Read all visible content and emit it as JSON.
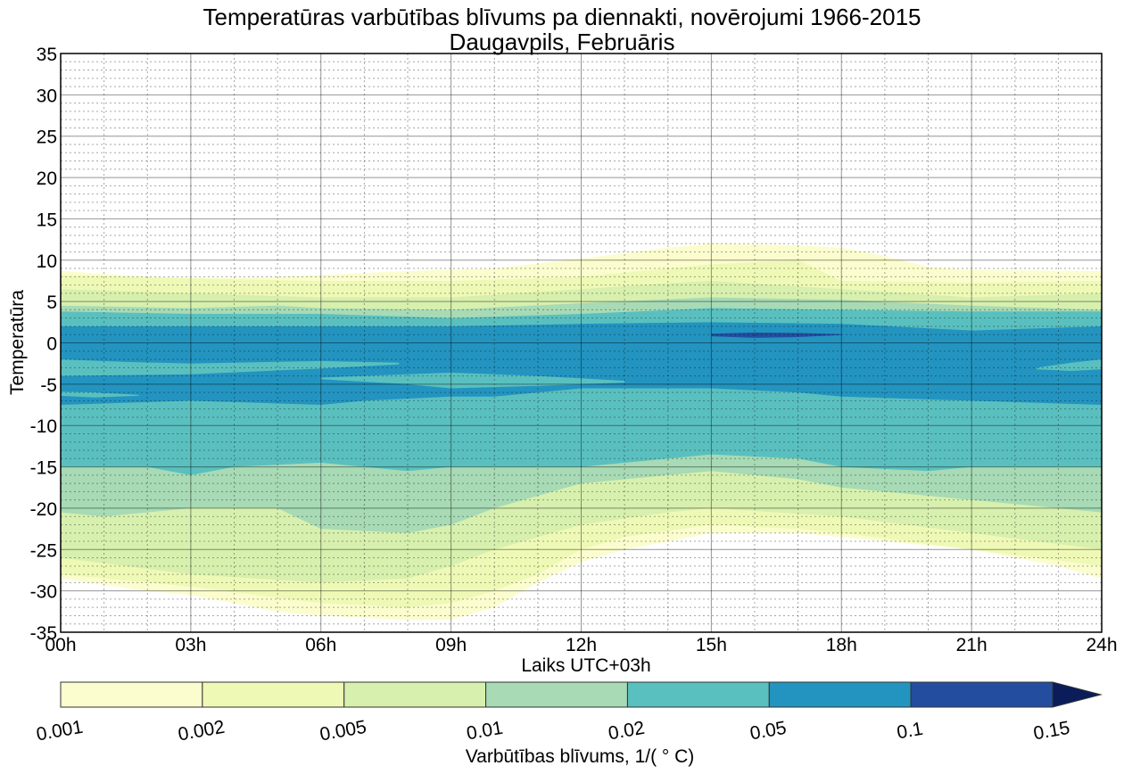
{
  "chart_data": {
    "type": "contourf",
    "title": "Temperatūras varbūtības blīvums pa diennakti, novērojumi 1966-2015",
    "subtitle": "Daugavpils, Februāris",
    "xlabel": "Laiks UTC+03h",
    "ylabel": "Temperatūra",
    "xlim": [
      0,
      24
    ],
    "ylim": [
      -35,
      35
    ],
    "x_ticks": [
      {
        "value": 0,
        "label": "00h"
      },
      {
        "value": 3,
        "label": "03h"
      },
      {
        "value": 6,
        "label": "06h"
      },
      {
        "value": 9,
        "label": "09h"
      },
      {
        "value": 12,
        "label": "12h"
      },
      {
        "value": 15,
        "label": "15h"
      },
      {
        "value": 18,
        "label": "18h"
      },
      {
        "value": 21,
        "label": "21h"
      },
      {
        "value": 24,
        "label": "24h"
      }
    ],
    "y_ticks": [
      {
        "value": 35,
        "label": "35"
      },
      {
        "value": 30,
        "label": "30"
      },
      {
        "value": 25,
        "label": "25"
      },
      {
        "value": 20,
        "label": "20"
      },
      {
        "value": 15,
        "label": "15"
      },
      {
        "value": 10,
        "label": "10"
      },
      {
        "value": 5,
        "label": "5"
      },
      {
        "value": 0,
        "label": "0"
      },
      {
        "value": -5,
        "label": "-5"
      },
      {
        "value": -10,
        "label": "-10"
      },
      {
        "value": -15,
        "label": "-15"
      },
      {
        "value": -20,
        "label": "-20"
      },
      {
        "value": -25,
        "label": "-25"
      },
      {
        "value": -30,
        "label": "-30"
      },
      {
        "value": -35,
        "label": "-35"
      }
    ],
    "grid": {
      "major": true,
      "minor": true,
      "x_minor_step": 1,
      "y_minor_step": 1
    },
    "colorbar": {
      "label": "Varbūtības blīvums, 1/( ° C)",
      "placement": "bottom",
      "extend": "max",
      "levels": [
        "0.001",
        "0.002",
        "0.005",
        "0.01",
        "0.02",
        "0.05",
        "0.1",
        "0.15"
      ],
      "colors": [
        "#fbfdce",
        "#eff9b6",
        "#d7f0ae",
        "#a7dab5",
        "#5ac0bf",
        "#2394c0",
        "#234ea0",
        "#0a1d5a"
      ]
    },
    "bands": [
      {
        "level": "0.001",
        "color_index": 0,
        "upper": [
          [
            0,
            8.7
          ],
          [
            2,
            8
          ],
          [
            4,
            7.8
          ],
          [
            6,
            8.2
          ],
          [
            8,
            8.7
          ],
          [
            10,
            9
          ],
          [
            12,
            10.2
          ],
          [
            14,
            11.5
          ],
          [
            15,
            12
          ],
          [
            17,
            11.8
          ],
          [
            18,
            11.5
          ],
          [
            19,
            10.5
          ],
          [
            20,
            9.2
          ],
          [
            21,
            8.8
          ],
          [
            24,
            8.7
          ]
        ],
        "lower": [
          [
            0,
            -28.5
          ],
          [
            2,
            -30
          ],
          [
            3,
            -30.5
          ],
          [
            5,
            -32.5
          ],
          [
            6,
            -33
          ],
          [
            8,
            -33.5
          ],
          [
            9,
            -33.5
          ],
          [
            10,
            -32
          ],
          [
            11,
            -29
          ],
          [
            12,
            -26.5
          ],
          [
            13,
            -25
          ],
          [
            15,
            -23
          ],
          [
            17,
            -23
          ],
          [
            18,
            -23.5
          ],
          [
            20,
            -24.5
          ],
          [
            21,
            -25
          ],
          [
            23,
            -27
          ],
          [
            24,
            -28.5
          ]
        ]
      },
      {
        "level": "0.002",
        "color_index": 1,
        "upper": [
          [
            0,
            8.2
          ],
          [
            3,
            7.8
          ],
          [
            6,
            7.5
          ],
          [
            9,
            7.5
          ],
          [
            12,
            8
          ],
          [
            14,
            9
          ],
          [
            15,
            9.5
          ],
          [
            17,
            10
          ],
          [
            18,
            7.5
          ],
          [
            21,
            7.3
          ],
          [
            24,
            7.5
          ]
        ],
        "lower": [
          [
            0,
            -28
          ],
          [
            3,
            -29.5
          ],
          [
            6,
            -31.5
          ],
          [
            8,
            -32
          ],
          [
            9,
            -31.5
          ],
          [
            10,
            -30
          ],
          [
            11,
            -28
          ],
          [
            12,
            -25
          ],
          [
            13,
            -23.5
          ],
          [
            15,
            -22
          ],
          [
            17,
            -22.5
          ],
          [
            18,
            -23
          ],
          [
            21,
            -25
          ],
          [
            24,
            -27
          ]
        ]
      },
      {
        "level": "0.005",
        "color_index": 2,
        "upper": [
          [
            0,
            6.5
          ],
          [
            3,
            6
          ],
          [
            6,
            5.5
          ],
          [
            9,
            5.5
          ],
          [
            12,
            6.5
          ],
          [
            14,
            7.2
          ],
          [
            15,
            7.5
          ],
          [
            18,
            6.5
          ],
          [
            21,
            5.5
          ],
          [
            24,
            6
          ]
        ],
        "lower": [
          [
            0,
            -26
          ],
          [
            3,
            -28
          ],
          [
            6,
            -29
          ],
          [
            8,
            -28.5
          ],
          [
            9,
            -27
          ],
          [
            10,
            -25
          ],
          [
            12,
            -22
          ],
          [
            14,
            -20.5
          ],
          [
            15,
            -20
          ],
          [
            18,
            -21
          ],
          [
            21,
            -23
          ],
          [
            24,
            -25
          ]
        ]
      },
      {
        "level": "0.01",
        "color_index": 3,
        "upper": [
          [
            0,
            4.5
          ],
          [
            3,
            4.2
          ],
          [
            5,
            4.5
          ],
          [
            6,
            4.2
          ],
          [
            9,
            4
          ],
          [
            12,
            4.8
          ],
          [
            15,
            5.5
          ],
          [
            18,
            5.2
          ],
          [
            21,
            4.5
          ],
          [
            24,
            4
          ]
        ],
        "lower": [
          [
            0,
            -20.5
          ],
          [
            1,
            -21
          ],
          [
            3,
            -20
          ],
          [
            5,
            -20
          ],
          [
            6,
            -22.5
          ],
          [
            8,
            -23
          ],
          [
            9,
            -22
          ],
          [
            10,
            -20
          ],
          [
            12,
            -17
          ],
          [
            13,
            -16.5
          ],
          [
            15,
            -15.5
          ],
          [
            17,
            -16.5
          ],
          [
            18,
            -17.5
          ],
          [
            21,
            -19
          ],
          [
            24,
            -20.5
          ]
        ]
      },
      {
        "level": "0.02",
        "color_index": 4,
        "upper": [
          [
            0,
            3.8
          ],
          [
            3,
            3.5
          ],
          [
            6,
            3.5
          ],
          [
            9,
            3
          ],
          [
            12,
            3.5
          ],
          [
            15,
            4.2
          ],
          [
            18,
            4
          ],
          [
            21,
            3.8
          ],
          [
            24,
            3.8
          ]
        ],
        "lower": [
          [
            0,
            -15
          ],
          [
            2,
            -15
          ],
          [
            3,
            -16
          ],
          [
            4,
            -15
          ],
          [
            6,
            -14.5
          ],
          [
            7,
            -15
          ],
          [
            8,
            -15.5
          ],
          [
            9,
            -15
          ],
          [
            12,
            -15
          ],
          [
            14,
            -14
          ],
          [
            15,
            -13.5
          ],
          [
            17,
            -14
          ],
          [
            18,
            -15
          ],
          [
            20,
            -15.5
          ],
          [
            21,
            -15
          ],
          [
            24,
            -15
          ]
        ]
      },
      {
        "level": "0.05",
        "color_index": 5,
        "upper": [
          [
            0,
            2
          ],
          [
            3,
            2
          ],
          [
            6,
            2
          ],
          [
            9,
            2
          ],
          [
            12,
            2.3
          ],
          [
            15,
            2.5
          ],
          [
            18,
            2.3
          ],
          [
            21,
            1.5
          ],
          [
            24,
            2
          ]
        ],
        "lower": [
          [
            0,
            -7.5
          ],
          [
            3,
            -7
          ],
          [
            6,
            -7.5
          ],
          [
            7,
            -7
          ],
          [
            9,
            -6.5
          ],
          [
            10,
            -6.5
          ],
          [
            12,
            -5.5
          ],
          [
            15,
            -5.5
          ],
          [
            17,
            -6
          ],
          [
            18,
            -6.5
          ],
          [
            21,
            -7
          ],
          [
            24,
            -7.5
          ]
        ]
      },
      {
        "level": "0.02",
        "color_index": 4,
        "kind": "hole",
        "upper": [
          [
            0,
            -2
          ],
          [
            1.5,
            -2.3
          ],
          [
            3,
            -2.5
          ],
          [
            6,
            -2.2
          ],
          [
            7.8,
            -2.4
          ]
        ],
        "lower": [
          [
            0,
            -4
          ],
          [
            3,
            -3.8
          ],
          [
            6,
            -3.1
          ],
          [
            7.8,
            -2.6
          ]
        ]
      },
      {
        "level": "0.02",
        "color_index": 4,
        "kind": "hole",
        "upper": [
          [
            6,
            -4.2
          ],
          [
            8,
            -3.8
          ],
          [
            9,
            -3.6
          ],
          [
            11,
            -4
          ],
          [
            13,
            -4.6
          ]
        ],
        "lower": [
          [
            6,
            -4.4
          ],
          [
            8,
            -5
          ],
          [
            9,
            -5.5
          ],
          [
            11,
            -5.2
          ],
          [
            13,
            -4.8
          ]
        ]
      },
      {
        "level": "0.02",
        "color_index": 4,
        "kind": "hole",
        "upper": [
          [
            22.5,
            -3
          ],
          [
            23.3,
            -2.4
          ],
          [
            24,
            -2
          ]
        ],
        "lower": [
          [
            22.5,
            -3.2
          ],
          [
            23.3,
            -3.4
          ],
          [
            24,
            -3.2
          ]
        ]
      },
      {
        "level": "0.02",
        "color_index": 4,
        "kind": "hole",
        "upper": [
          [
            0,
            -5.9
          ],
          [
            0.8,
            -6
          ],
          [
            1.8,
            -6.3
          ]
        ],
        "lower": [
          [
            0,
            -6.4
          ],
          [
            0.8,
            -6.6
          ],
          [
            1.8,
            -6.4
          ]
        ]
      },
      {
        "level": "0.1",
        "color_index": 6,
        "upper": [
          [
            15,
            1.1
          ],
          [
            16,
            1.25
          ],
          [
            17,
            1.2
          ],
          [
            18,
            1.05
          ]
        ],
        "lower": [
          [
            15,
            0.8
          ],
          [
            16,
            0.6
          ],
          [
            17,
            0.7
          ],
          [
            18,
            0.95
          ]
        ]
      }
    ]
  }
}
